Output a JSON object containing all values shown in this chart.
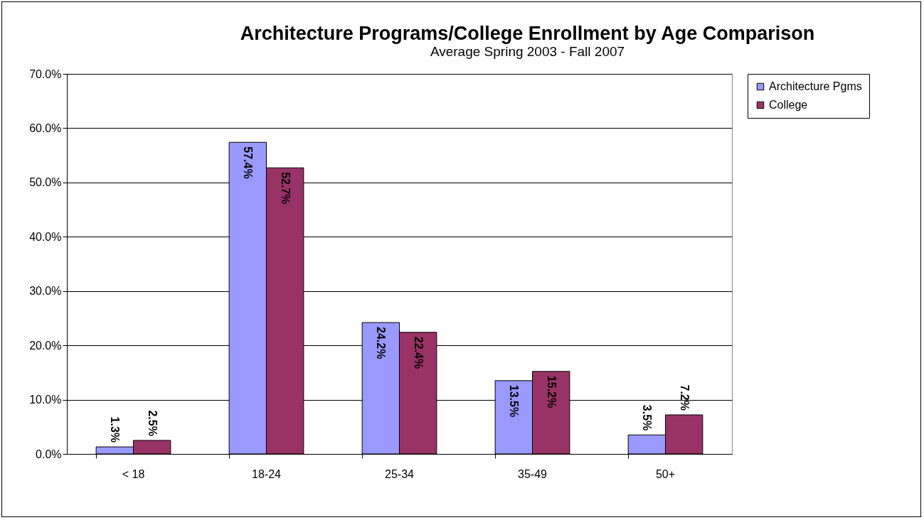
{
  "chart_data": {
    "type": "bar",
    "title": "Architecture Programs/College Enrollment by Age Comparison",
    "subtitle": "Average Spring 2003 - Fall 2007",
    "categories": [
      "< 18",
      "18-24",
      "25-34",
      "35-49",
      "50+"
    ],
    "series": [
      {
        "name": "Architecture Pgms",
        "color": "#9999ff",
        "values": [
          1.3,
          57.4,
          24.2,
          13.5,
          3.5
        ],
        "value_labels": [
          "1.3%",
          "57.4%",
          "24.2%",
          "13.5%",
          "3.5%"
        ]
      },
      {
        "name": "College",
        "color": "#993366",
        "values": [
          2.5,
          52.7,
          22.4,
          15.2,
          7.2
        ],
        "value_labels": [
          "2.5%",
          "52.7%",
          "22.4%",
          "15.2%",
          "7.2%"
        ]
      }
    ],
    "ylim": [
      0,
      70
    ],
    "yticks": [
      {
        "value": 0,
        "label": "0.0%"
      },
      {
        "value": 10,
        "label": "10.0%"
      },
      {
        "value": 20,
        "label": "20.0%"
      },
      {
        "value": 30,
        "label": "30.0%"
      },
      {
        "value": 40,
        "label": "40.0%"
      },
      {
        "value": 50,
        "label": "50.0%"
      },
      {
        "value": 60,
        "label": "60.0%"
      },
      {
        "value": 70,
        "label": "70.0%"
      }
    ],
    "grid": "y",
    "legend": "right"
  }
}
